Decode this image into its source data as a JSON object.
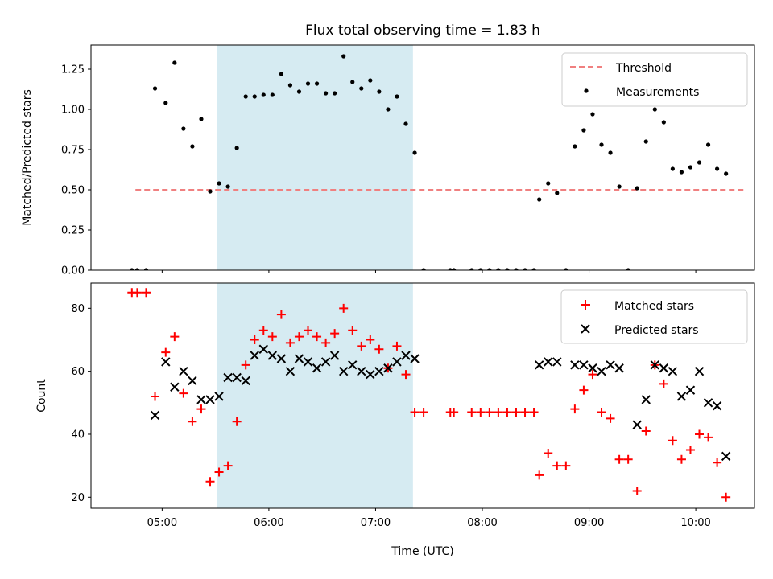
{
  "chart_data": [
    {
      "type": "scatter",
      "title": "Flux total observing time = 1.83 h",
      "xlabel": "",
      "ylabel": "Matched/Predicted stars",
      "xlim": [
        "04:20",
        "10:33"
      ],
      "ylim": [
        0,
        1.4
      ],
      "yticks": [
        "0.00",
        "0.25",
        "0.50",
        "0.75",
        "1.00",
        "1.25"
      ],
      "grid": false,
      "legend_position": "top-right",
      "shaded_span": {
        "start": "05:31",
        "end": "07:21",
        "color": "#add8e6"
      },
      "threshold": {
        "name": "Threshold",
        "value": 0.5,
        "x_start": "04:45",
        "x_end": "10:27",
        "style": "dashed",
        "color": "#f08080"
      },
      "series": [
        {
          "name": "Measurements",
          "marker": "dot",
          "color": "#000000",
          "points": [
            [
              "04:43",
              0.0
            ],
            [
              "04:46",
              0.0
            ],
            [
              "04:51",
              0.0
            ],
            [
              "04:56",
              1.13
            ],
            [
              "05:02",
              1.04
            ],
            [
              "05:07",
              1.29
            ],
            [
              "05:12",
              0.88
            ],
            [
              "05:17",
              0.77
            ],
            [
              "05:22",
              0.94
            ],
            [
              "05:27",
              0.49
            ],
            [
              "05:32",
              0.54
            ],
            [
              "05:37",
              0.52
            ],
            [
              "05:42",
              0.76
            ],
            [
              "05:47",
              1.08
            ],
            [
              "05:52",
              1.08
            ],
            [
              "05:57",
              1.09
            ],
            [
              "06:02",
              1.09
            ],
            [
              "06:07",
              1.22
            ],
            [
              "06:12",
              1.15
            ],
            [
              "06:17",
              1.11
            ],
            [
              "06:22",
              1.16
            ],
            [
              "06:27",
              1.16
            ],
            [
              "06:32",
              1.1
            ],
            [
              "06:37",
              1.1
            ],
            [
              "06:42",
              1.33
            ],
            [
              "06:47",
              1.17
            ],
            [
              "06:52",
              1.13
            ],
            [
              "06:57",
              1.18
            ],
            [
              "07:02",
              1.11
            ],
            [
              "07:07",
              1.0
            ],
            [
              "07:12",
              1.08
            ],
            [
              "07:17",
              0.91
            ],
            [
              "07:22",
              0.73
            ],
            [
              "07:27",
              0.0
            ],
            [
              "07:42",
              0.0
            ],
            [
              "07:44",
              0.0
            ],
            [
              "07:54",
              0.0
            ],
            [
              "07:59",
              0.0
            ],
            [
              "08:04",
              0.0
            ],
            [
              "08:09",
              0.0
            ],
            [
              "08:14",
              0.0
            ],
            [
              "08:19",
              0.0
            ],
            [
              "08:24",
              0.0
            ],
            [
              "08:29",
              0.0
            ],
            [
              "08:32",
              0.44
            ],
            [
              "08:37",
              0.54
            ],
            [
              "08:42",
              0.48
            ],
            [
              "08:47",
              0.0
            ],
            [
              "08:52",
              0.77
            ],
            [
              "08:57",
              0.87
            ],
            [
              "09:02",
              0.97
            ],
            [
              "09:07",
              0.78
            ],
            [
              "09:12",
              0.73
            ],
            [
              "09:17",
              0.52
            ],
            [
              "09:22",
              0.0
            ],
            [
              "09:27",
              0.51
            ],
            [
              "09:32",
              0.8
            ],
            [
              "09:37",
              1.0
            ],
            [
              "09:42",
              0.92
            ],
            [
              "09:47",
              0.63
            ],
            [
              "09:52",
              0.61
            ],
            [
              "09:57",
              0.64
            ],
            [
              "10:02",
              0.67
            ],
            [
              "10:07",
              0.78
            ],
            [
              "10:12",
              0.63
            ],
            [
              "10:17",
              0.6
            ]
          ]
        }
      ]
    },
    {
      "type": "scatter",
      "title": "",
      "xlabel": "Time (UTC)",
      "ylabel": "Count",
      "xlim": [
        "04:20",
        "10:33"
      ],
      "ylim": [
        16.5,
        88
      ],
      "xticks": [
        "05:00",
        "06:00",
        "07:00",
        "08:00",
        "09:00",
        "10:00"
      ],
      "yticks": [
        "20",
        "40",
        "60",
        "80"
      ],
      "grid": false,
      "legend_position": "top-right",
      "shaded_span": {
        "start": "05:31",
        "end": "07:21",
        "color": "#add8e6"
      },
      "series": [
        {
          "name": "Matched stars",
          "marker": "plus",
          "color": "#ff0000",
          "points": [
            [
              "04:43",
              85
            ],
            [
              "04:46",
              85
            ],
            [
              "04:51",
              85
            ],
            [
              "04:56",
              52
            ],
            [
              "05:02",
              66
            ],
            [
              "05:07",
              71
            ],
            [
              "05:12",
              53
            ],
            [
              "05:17",
              44
            ],
            [
              "05:22",
              48
            ],
            [
              "05:27",
              25
            ],
            [
              "05:32",
              28
            ],
            [
              "05:37",
              30
            ],
            [
              "05:42",
              44
            ],
            [
              "05:47",
              62
            ],
            [
              "05:52",
              70
            ],
            [
              "05:57",
              73
            ],
            [
              "06:02",
              71
            ],
            [
              "06:07",
              78
            ],
            [
              "06:12",
              69
            ],
            [
              "06:17",
              71
            ],
            [
              "06:22",
              73
            ],
            [
              "06:27",
              71
            ],
            [
              "06:32",
              69
            ],
            [
              "06:37",
              72
            ],
            [
              "06:42",
              80
            ],
            [
              "06:47",
              73
            ],
            [
              "06:52",
              68
            ],
            [
              "06:57",
              70
            ],
            [
              "07:02",
              67
            ],
            [
              "07:07",
              61
            ],
            [
              "07:12",
              68
            ],
            [
              "07:17",
              59
            ],
            [
              "07:22",
              47
            ],
            [
              "07:27",
              47
            ],
            [
              "07:42",
              47
            ],
            [
              "07:44",
              47
            ],
            [
              "07:54",
              47
            ],
            [
              "07:59",
              47
            ],
            [
              "08:04",
              47
            ],
            [
              "08:09",
              47
            ],
            [
              "08:14",
              47
            ],
            [
              "08:19",
              47
            ],
            [
              "08:24",
              47
            ],
            [
              "08:29",
              47
            ],
            [
              "08:32",
              27
            ],
            [
              "08:37",
              34
            ],
            [
              "08:42",
              30
            ],
            [
              "08:47",
              30
            ],
            [
              "08:52",
              48
            ],
            [
              "08:57",
              54
            ],
            [
              "09:02",
              59
            ],
            [
              "09:07",
              47
            ],
            [
              "09:12",
              45
            ],
            [
              "09:17",
              32
            ],
            [
              "09:22",
              32
            ],
            [
              "09:27",
              22
            ],
            [
              "09:32",
              41
            ],
            [
              "09:37",
              62
            ],
            [
              "09:42",
              56
            ],
            [
              "09:47",
              38
            ],
            [
              "09:52",
              32
            ],
            [
              "09:57",
              35
            ],
            [
              "10:02",
              40
            ],
            [
              "10:07",
              39
            ],
            [
              "10:12",
              31
            ],
            [
              "10:17",
              20
            ]
          ]
        },
        {
          "name": "Predicted stars",
          "marker": "x",
          "color": "#000000",
          "points": [
            [
              "04:56",
              46
            ],
            [
              "05:02",
              63
            ],
            [
              "05:07",
              55
            ],
            [
              "05:12",
              60
            ],
            [
              "05:17",
              57
            ],
            [
              "05:22",
              51
            ],
            [
              "05:27",
              51
            ],
            [
              "05:32",
              52
            ],
            [
              "05:37",
              58
            ],
            [
              "05:42",
              58
            ],
            [
              "05:47",
              57
            ],
            [
              "05:52",
              65
            ],
            [
              "05:57",
              67
            ],
            [
              "06:02",
              65
            ],
            [
              "06:07",
              64
            ],
            [
              "06:12",
              60
            ],
            [
              "06:17",
              64
            ],
            [
              "06:22",
              63
            ],
            [
              "06:27",
              61
            ],
            [
              "06:32",
              63
            ],
            [
              "06:37",
              65
            ],
            [
              "06:42",
              60
            ],
            [
              "06:47",
              62
            ],
            [
              "06:52",
              60
            ],
            [
              "06:57",
              59
            ],
            [
              "07:02",
              60
            ],
            [
              "07:07",
              61
            ],
            [
              "07:12",
              63
            ],
            [
              "07:17",
              65
            ],
            [
              "07:22",
              64
            ],
            [
              "08:32",
              62
            ],
            [
              "08:37",
              63
            ],
            [
              "08:42",
              63
            ],
            [
              "08:52",
              62
            ],
            [
              "08:57",
              62
            ],
            [
              "09:02",
              61
            ],
            [
              "09:07",
              60
            ],
            [
              "09:12",
              62
            ],
            [
              "09:17",
              61
            ],
            [
              "09:27",
              43
            ],
            [
              "09:32",
              51
            ],
            [
              "09:37",
              62
            ],
            [
              "09:42",
              61
            ],
            [
              "09:47",
              60
            ],
            [
              "09:52",
              52
            ],
            [
              "09:57",
              54
            ],
            [
              "10:02",
              60
            ],
            [
              "10:07",
              50
            ],
            [
              "10:12",
              49
            ],
            [
              "10:17",
              33
            ]
          ]
        }
      ]
    }
  ]
}
